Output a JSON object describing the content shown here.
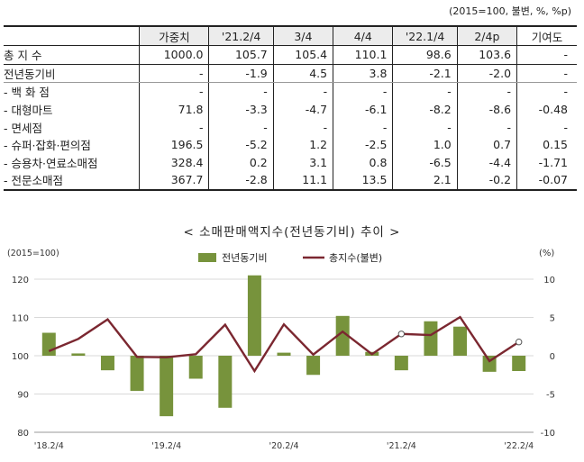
{
  "unit_note": "(2015=100, 불변, %, %p)",
  "table": {
    "headers": [
      "",
      "가중치",
      "'21.2/4",
      "3/4",
      "4/4",
      "'22.1/4",
      "2/4p",
      "기여도"
    ],
    "rows": [
      {
        "label": "총 지 수",
        "cells": [
          "1000.0",
          "105.7",
          "105.4",
          "110.1",
          "98.6",
          "103.6",
          "-"
        ]
      },
      {
        "label": "전년동기비",
        "cells": [
          "-",
          "-1.9",
          "4.5",
          "3.8",
          "-2.1",
          "-2.0",
          "-"
        ]
      },
      {
        "label": "- 백 화 점",
        "cells": [
          "-",
          "-",
          "-",
          "-",
          "-",
          "-",
          "-"
        ]
      },
      {
        "label": "- 대형마트",
        "cells": [
          "71.8",
          "-3.3",
          "-4.7",
          "-6.1",
          "-8.2",
          "-8.6",
          "-0.48"
        ]
      },
      {
        "label": "- 면세점",
        "cells": [
          "-",
          "-",
          "-",
          "-",
          "-",
          "-",
          "-"
        ]
      },
      {
        "label": "- 슈퍼·잡화·편의점",
        "cells": [
          "196.5",
          "-5.2",
          "1.2",
          "-2.5",
          "1.0",
          "0.7",
          "0.15"
        ]
      },
      {
        "label": "- 승용차·연료소매점",
        "cells": [
          "328.4",
          "0.2",
          "3.1",
          "0.8",
          "-6.5",
          "-4.4",
          "-1.71"
        ]
      },
      {
        "label": "- 전문소매점",
        "cells": [
          "367.7",
          "-2.8",
          "11.1",
          "13.5",
          "2.1",
          "-0.2",
          "-0.07"
        ]
      }
    ]
  },
  "chart_title": "< 소매판매액지수(전년동기비) 추이 >",
  "chart_data": {
    "type": "bar",
    "left_axis_label": "(2015=100)",
    "right_axis_label": "(%)",
    "x": [
      "'18.2/4",
      "'18.3/4",
      "'18.4/4",
      "'19.1/4",
      "'19.2/4",
      "'19.3/4",
      "'19.4/4",
      "'20.1/4",
      "'20.2/4",
      "'20.3/4",
      "'20.4/4",
      "'21.1/4",
      "'21.2/4",
      "'21.3/4",
      "'21.4/4",
      "'22.1/4",
      "'22.2/4"
    ],
    "x_tick_labels": [
      "'18.2/4",
      "'19.2/4",
      "'20.2/4",
      "'21.2/4",
      "'22.2/4"
    ],
    "x_tick_indices": [
      0,
      4,
      8,
      12,
      16
    ],
    "legend": [
      "전년동기비",
      "총지수(불변)"
    ],
    "series": [
      {
        "name": "전년동기비",
        "axis": "right",
        "type": "bar",
        "color": "#77933c",
        "values": [
          3.0,
          0.3,
          -1.9,
          -4.6,
          -7.9,
          -3.0,
          -6.8,
          10.5,
          0.4,
          -2.5,
          5.2,
          0.5,
          -1.9,
          4.5,
          3.8,
          -2.1,
          -2.0
        ]
      },
      {
        "name": "총지수(불변)",
        "axis": "left",
        "type": "line",
        "color": "#7b2730",
        "values": [
          101.2,
          104.4,
          109.5,
          99.7,
          99.6,
          100.4,
          108.1,
          96.0,
          108.2,
          100.3,
          106.3,
          100.4,
          105.7,
          105.4,
          110.1,
          98.6,
          103.6
        ],
        "hollow_markers_at": [
          12,
          16
        ]
      }
    ],
    "left_ylim": [
      80,
      120
    ],
    "left_ticks": [
      80,
      90,
      100,
      110,
      120
    ],
    "right_ylim": [
      -10,
      10
    ],
    "right_ticks": [
      -10,
      -5,
      0,
      5,
      10
    ],
    "grid": true,
    "legend_position": "top-center"
  },
  "colors": {
    "bar": "#77933c",
    "line": "#7b2730",
    "grid": "#d9d9d9"
  }
}
